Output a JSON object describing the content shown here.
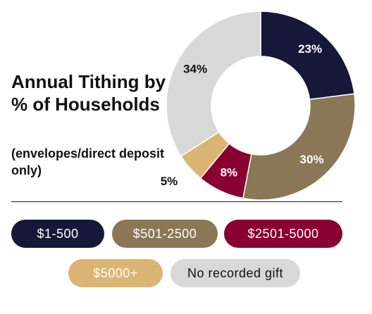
{
  "chart_data": {
    "type": "pie",
    "title": "Annual Tithing by % of Households",
    "subtitle": "(envelopes/direct deposit only)",
    "categories": [
      "$1-500",
      "$501-2500",
      "$2501-5000",
      "$5000+",
      "No recorded gift"
    ],
    "values": [
      23,
      30,
      8,
      5,
      34
    ],
    "labels": [
      "23%",
      "30%",
      "8%",
      "5%",
      "34%"
    ],
    "colors": [
      "#16183a",
      "#8a7756",
      "#880131",
      "#dbb574",
      "#d8d8d8"
    ],
    "label_colors": [
      "#ffffff",
      "#ffffff",
      "#ffffff",
      "#111111",
      "#111111"
    ],
    "legend_text_colors": [
      "#ffffff",
      "#ffffff",
      "#ffffff",
      "#ffffff",
      "#111111"
    ],
    "donut": true,
    "legend_position": "bottom"
  }
}
